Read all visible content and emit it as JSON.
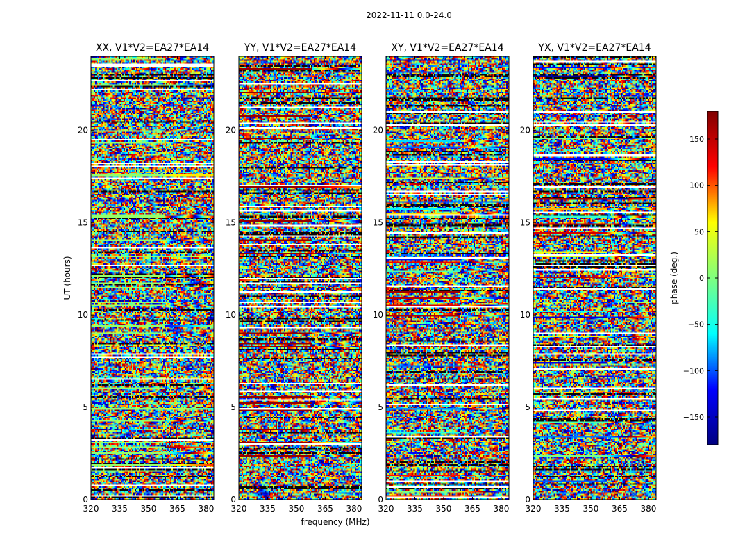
{
  "chart_data": {
    "type": "heatmap",
    "title": "2022-11-11 0.0-24.0",
    "xlabel": "frequency (MHz)",
    "ylabel": "UT (hours)",
    "xlim": [
      320,
      384
    ],
    "ylim": [
      0,
      24
    ],
    "xticks": [
      320,
      335,
      350,
      365,
      380
    ],
    "yticks": [
      0,
      5,
      10,
      15,
      20
    ],
    "colorbar": {
      "label": "phase (deg.)",
      "range": [
        -180,
        180
      ],
      "ticks": [
        150,
        100,
        50,
        0,
        -50,
        -100,
        -150
      ],
      "tick_labels": [
        "150",
        "100",
        "50",
        "0",
        "−50",
        "−100",
        "−150"
      ],
      "colormap": "jet",
      "colors": [
        "#000080",
        "#0000ff",
        "#00ffff",
        "#7fff7f",
        "#ffff00",
        "#ff0000",
        "#800000"
      ],
      "placement": "right"
    },
    "panels": [
      {
        "title": "XX, V1*V2=EA27*EA14"
      },
      {
        "title": "YY, V1*V2=EA27*EA14"
      },
      {
        "title": "XY, V1*V2=EA27*EA14"
      },
      {
        "title": "YX, V1*V2=EA27*EA14"
      }
    ],
    "content": "per-channel phase, mostly random (noise-like) with white flagged gaps and dark wrapped bands"
  }
}
